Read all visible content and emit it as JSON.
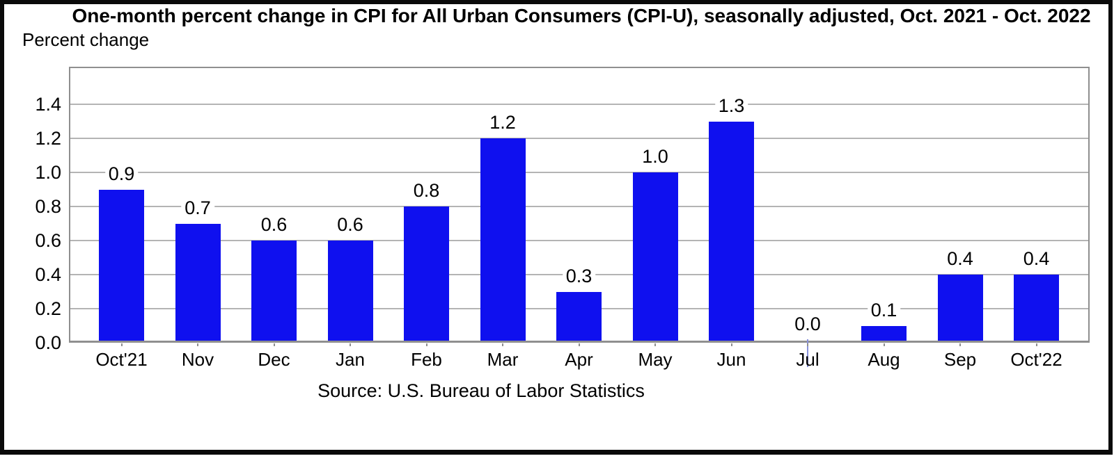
{
  "header": {
    "title": "One-month percent change in CPI for All Urban Consumers (CPI-U), seasonally adjusted, Oct. 2021 - Oct. 2022",
    "axis_corner_label": "Percent change"
  },
  "footer": {
    "source": "Source: U.S. Bureau of Labor Statistics"
  },
  "chart_data": {
    "type": "bar",
    "title": "One-month percent change in CPI for All Urban Consumers (CPI-U), seasonally adjusted, Oct. 2021 - Oct. 2022",
    "ylabel": "Percent change",
    "xlabel": "",
    "categories": [
      "Oct'21",
      "Nov",
      "Dec",
      "Jan",
      "Feb",
      "Mar",
      "Apr",
      "May",
      "Jun",
      "Jul",
      "Aug",
      "Sep",
      "Oct'22"
    ],
    "values": [
      0.9,
      0.7,
      0.6,
      0.6,
      0.8,
      1.2,
      0.3,
      1.0,
      1.3,
      0.0,
      0.1,
      0.4,
      0.4
    ],
    "data_labels_shown": true,
    "yticks": [
      0.0,
      0.2,
      0.4,
      0.6,
      0.8,
      1.0,
      1.2,
      1.4
    ],
    "ylim": [
      0,
      1.62
    ],
    "grid": true,
    "legend": "none",
    "source": "Source: U.S. Bureau of Labor Statistics",
    "colors": {
      "bar": "#0f10ef",
      "gridline": "#b4b4b4",
      "frame": "#8f8f8f",
      "zero_bar_artifact": "#8891dd",
      "text": "#000000",
      "outer_border": "#0a0a0a"
    }
  }
}
